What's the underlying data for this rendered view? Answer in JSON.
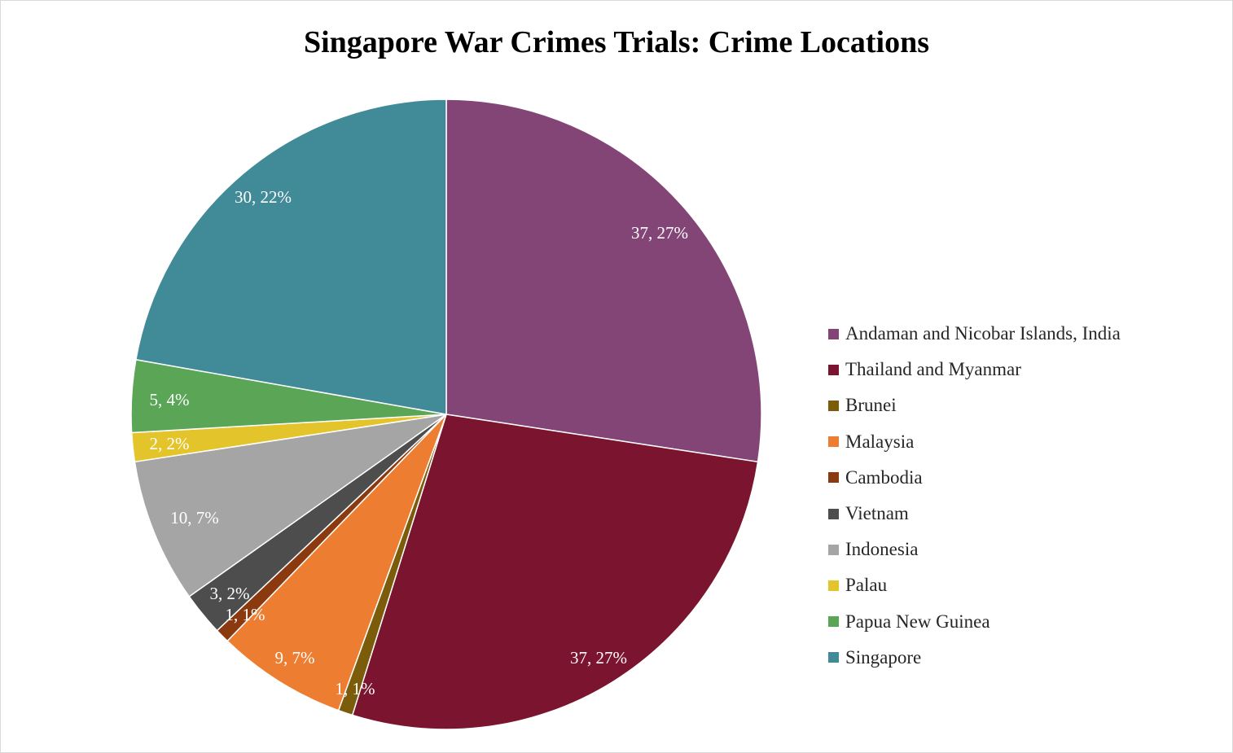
{
  "chart_data": {
    "type": "pie",
    "title": "Singapore War Crimes Trials: Crime Locations",
    "categories": [
      "Andaman and Nicobar Islands, India",
      "Thailand and Myanmar",
      "Brunei",
      "Malaysia",
      "Cambodia",
      "Vietnam",
      "Indonesia",
      "Palau",
      "Papua New Guinea",
      "Singapore"
    ],
    "values": [
      37,
      37,
      1,
      9,
      1,
      3,
      10,
      2,
      5,
      30
    ],
    "labels": [
      "37, 27%",
      "37, 27%",
      "1, 1%",
      "9, 7%",
      "1, 1%",
      "3, 2%",
      "10, 7%",
      "2, 2%",
      "5, 4%",
      "30, 22%"
    ],
    "colors": [
      "#834576",
      "#7b142f",
      "#7a5c0b",
      "#ed7d31",
      "#8b3a10",
      "#4d4d4d",
      "#a5a5a5",
      "#e3c42a",
      "#5ba557",
      "#418b98"
    ],
    "legend_position": "right"
  }
}
